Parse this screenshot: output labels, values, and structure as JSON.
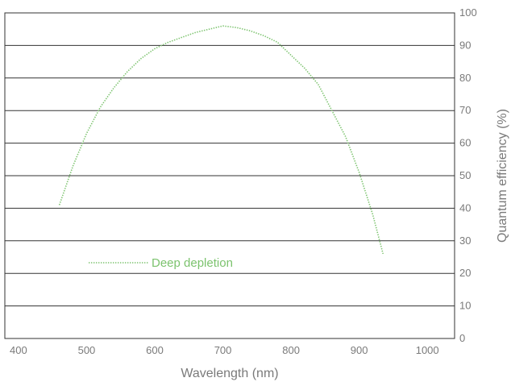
{
  "chart_data": {
    "type": "line",
    "xlabel": "Wavelength (nm)",
    "ylabel": "Quantum efficiency (%)",
    "xlim": [
      380,
      1040
    ],
    "ylim": [
      0,
      100
    ],
    "x_ticks": [
      400,
      500,
      600,
      700,
      800,
      900,
      1000
    ],
    "y_ticks": [
      0,
      10,
      20,
      30,
      40,
      50,
      60,
      70,
      80,
      90,
      100
    ],
    "y_axis_side": "right",
    "grid": "horizontal",
    "legend_position": "bottom-left",
    "series": [
      {
        "name": "Deep depletion",
        "color": "#7cc36e",
        "style": "dotted",
        "x": [
          460,
          480,
          500,
          520,
          540,
          560,
          580,
          600,
          620,
          640,
          660,
          680,
          700,
          720,
          740,
          760,
          780,
          800,
          820,
          840,
          860,
          880,
          900,
          920,
          935
        ],
        "y": [
          41,
          53,
          63,
          71,
          77,
          82,
          86,
          89,
          91,
          92.5,
          94,
          95,
          96,
          95.5,
          94.5,
          93,
          91,
          87,
          83,
          78,
          70,
          62,
          51,
          38,
          26
        ]
      }
    ]
  }
}
